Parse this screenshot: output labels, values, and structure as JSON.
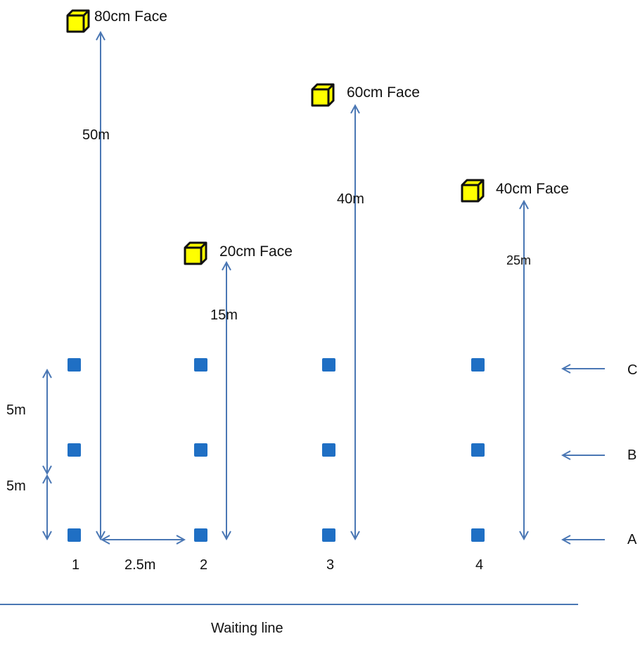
{
  "colors": {
    "arrow": "#4a77b4",
    "peg": "#1f6fc4",
    "target_face": "#ffff00",
    "target_outline": "#111111",
    "text": "#111111"
  },
  "targets": [
    {
      "id": "t1",
      "label": "80cm Face",
      "distance": "50m"
    },
    {
      "id": "t2",
      "label": "20cm Face",
      "distance": "15m"
    },
    {
      "id": "t3",
      "label": "60cm Face",
      "distance": "40m"
    },
    {
      "id": "t4",
      "label": "40cm Face",
      "distance": "25m"
    }
  ],
  "columns": [
    {
      "id": "c1",
      "label": "1"
    },
    {
      "id": "c2",
      "label": "2"
    },
    {
      "id": "c3",
      "label": "3"
    },
    {
      "id": "c4",
      "label": "4"
    }
  ],
  "rows": [
    {
      "id": "C",
      "label": "C"
    },
    {
      "id": "B",
      "label": "B"
    },
    {
      "id": "A",
      "label": "A"
    }
  ],
  "spacing": {
    "row_gap_upper": "5m",
    "row_gap_lower": "5m",
    "column_gap": "2.5m"
  },
  "waiting_line": {
    "label": "Waiting line"
  }
}
